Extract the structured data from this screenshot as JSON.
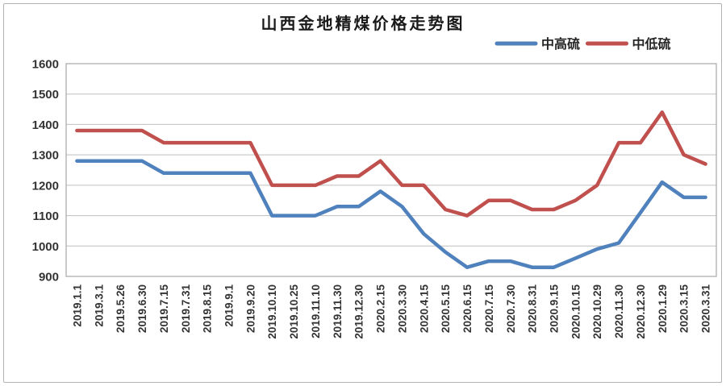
{
  "chart_data": {
    "type": "line",
    "title": "山西金地精煤价格走势图",
    "xlabel": "",
    "ylabel": "",
    "ylim": [
      900,
      1600
    ],
    "ytick_step": 100,
    "yticks": [
      1600,
      1500,
      1400,
      1300,
      1200,
      1100,
      1000,
      900
    ],
    "grid": "horizontal",
    "legend_position": "top-right",
    "categories": [
      "2019.1.1",
      "2019.3.1",
      "2019.5.26",
      "2019.6.30",
      "2019.7.15",
      "2019.7.31",
      "2019.8.15",
      "2019.9.1",
      "2019.9.20",
      "2019.10.10",
      "2019.10.25",
      "2019.11.10",
      "2019.11.30",
      "2019.12.30",
      "2020.2.15",
      "2020.3.30",
      "2020.4.15",
      "2020.5.15",
      "2020.6.15",
      "2020.7.15",
      "2020.7.30",
      "2020.8.31",
      "2020.9.15",
      "2020.10.15",
      "2020.10.29",
      "2020.11.30",
      "2020.12.30",
      "2020.1.29",
      "2020.3.15",
      "2020.3.31"
    ],
    "series": [
      {
        "name": "中高硫",
        "color": "#4F81BD",
        "values": [
          1280,
          1280,
          1280,
          1280,
          1240,
          1240,
          1240,
          1240,
          1240,
          1100,
          1100,
          1100,
          1130,
          1130,
          1180,
          1130,
          1040,
          980,
          930,
          950,
          950,
          930,
          930,
          960,
          990,
          1010,
          1110,
          1210,
          1160,
          1160
        ]
      },
      {
        "name": "中低硫",
        "color": "#C0504D",
        "values": [
          1380,
          1380,
          1380,
          1380,
          1340,
          1340,
          1340,
          1340,
          1340,
          1200,
          1200,
          1200,
          1230,
          1230,
          1280,
          1200,
          1200,
          1120,
          1100,
          1150,
          1150,
          1120,
          1120,
          1150,
          1200,
          1340,
          1340,
          1440,
          1300,
          1270
        ]
      }
    ],
    "colors": {
      "gridline": "#bfbfbf",
      "plot_border": "#a6a6a6",
      "text": "#333333"
    }
  }
}
